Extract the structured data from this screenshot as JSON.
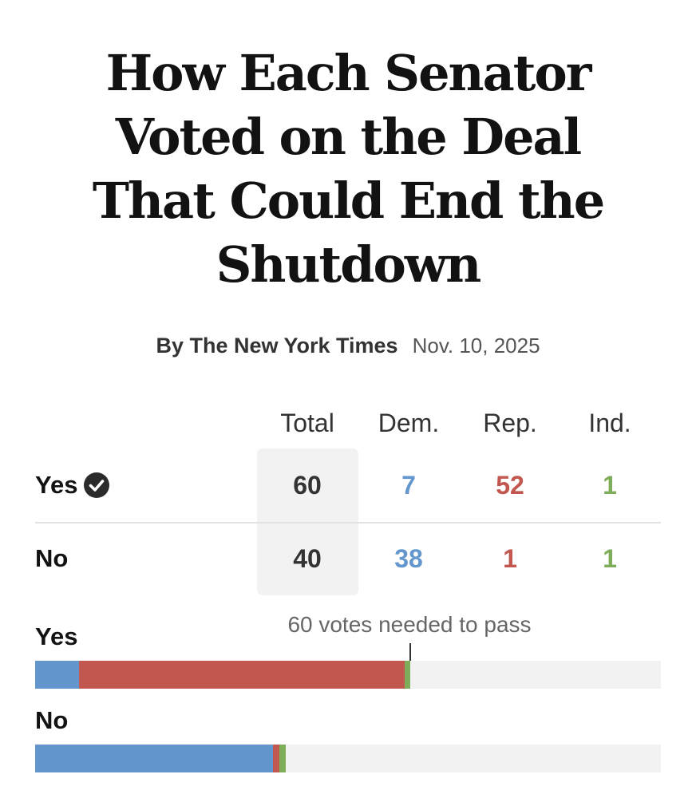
{
  "headline": "How Each Senator Voted on the Deal That Could End the Shutdown",
  "byline": "By The New York Times",
  "date": "Nov. 10, 2025",
  "colors": {
    "dem": "#6396cc",
    "rep": "#c25750",
    "ind": "#7fae5a",
    "total_bg": "#f2f2f2",
    "track": "#f2f2f2"
  },
  "chart_data": [
    {
      "type": "table",
      "columns": [
        "Total",
        "Dem.",
        "Rep.",
        "Ind."
      ],
      "rows": [
        {
          "label": "Yes",
          "icon": "check-circle-icon",
          "values": [
            "60",
            "7",
            "52",
            "1"
          ]
        },
        {
          "label": "No",
          "icon": "",
          "values": [
            "40",
            "38",
            "1",
            "1"
          ]
        }
      ]
    },
    {
      "type": "bar",
      "stacked": true,
      "categories": [
        "Yes",
        "No"
      ],
      "series": [
        {
          "party": "dem",
          "values": [
            7,
            38
          ]
        },
        {
          "party": "rep",
          "values": [
            52,
            1
          ]
        },
        {
          "party": "ind",
          "values": [
            1,
            1
          ]
        }
      ],
      "xlim": [
        0,
        100
      ],
      "threshold": {
        "value": 60,
        "label": "60 votes needed to pass"
      }
    }
  ]
}
